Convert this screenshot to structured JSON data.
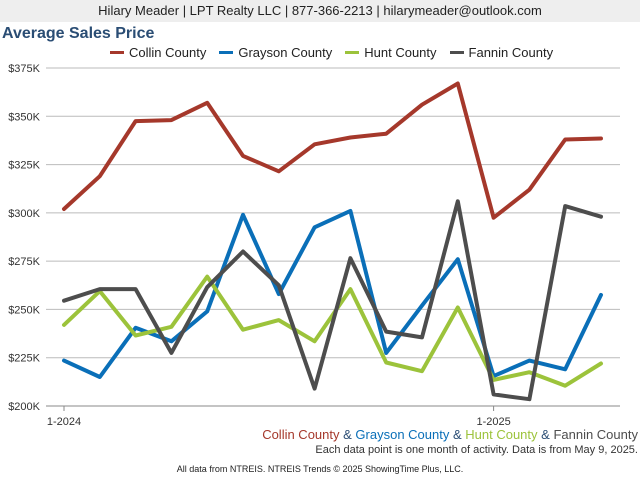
{
  "header": {
    "text": "Hilary Meader | LPT Realty LLC | 877-366-2213 | hilarymeader@outlook.com"
  },
  "footer": {
    "amp": "&",
    "note": "Each data point is one month of activity. Data is from May 9, 2025.",
    "source": "All data from NTREIS. NTREIS Trends © 2025 ShowingTime Plus, LLC."
  },
  "chart_data": {
    "type": "line",
    "title": "Average Sales Price",
    "xlabel": "",
    "ylabel": "",
    "x": [
      "2024-01",
      "2024-02",
      "2024-03",
      "2024-04",
      "2024-05",
      "2024-06",
      "2024-07",
      "2024-08",
      "2024-09",
      "2024-10",
      "2024-11",
      "2024-12",
      "2025-01",
      "2025-02",
      "2025-03",
      "2025-04"
    ],
    "x_tick_labels": [
      {
        "index": 0,
        "label": "1-2024"
      },
      {
        "index": 12,
        "label": "1-2025"
      }
    ],
    "ylim": [
      200000,
      375000
    ],
    "y_ticks": [
      200000,
      225000,
      250000,
      275000,
      300000,
      325000,
      350000,
      375000
    ],
    "y_tick_labels": [
      "$200K",
      "$225K",
      "$250K",
      "$275K",
      "$300K",
      "$325K",
      "$350K",
      "$375K"
    ],
    "grid": true,
    "legend_position": "top",
    "series": [
      {
        "name": "Collin County",
        "color": "#a5382b",
        "values": [
          302000,
          319000,
          347500,
          348000,
          357000,
          329500,
          321500,
          335500,
          339000,
          341000,
          356000,
          367000,
          297500,
          312000,
          338000,
          338500
        ]
      },
      {
        "name": "Grayson County",
        "color": "#0a6fb8",
        "values": [
          223500,
          215000,
          240500,
          233500,
          249000,
          299000,
          258000,
          292500,
          301000,
          227500,
          252000,
          276000,
          215500,
          223500,
          219000,
          257500
        ]
      },
      {
        "name": "Hunt County",
        "color": "#9cc33b",
        "values": [
          242000,
          259500,
          236500,
          241000,
          267000,
          239500,
          244500,
          233500,
          260500,
          222500,
          218000,
          251000,
          213500,
          217500,
          210500,
          222000
        ]
      },
      {
        "name": "Fannin County",
        "color": "#4d4d4d",
        "values": [
          254500,
          260500,
          260500,
          227500,
          261500,
          280000,
          262500,
          209000,
          276500,
          238500,
          235500,
          306000,
          206000,
          203500,
          303500,
          298000
        ]
      }
    ]
  }
}
